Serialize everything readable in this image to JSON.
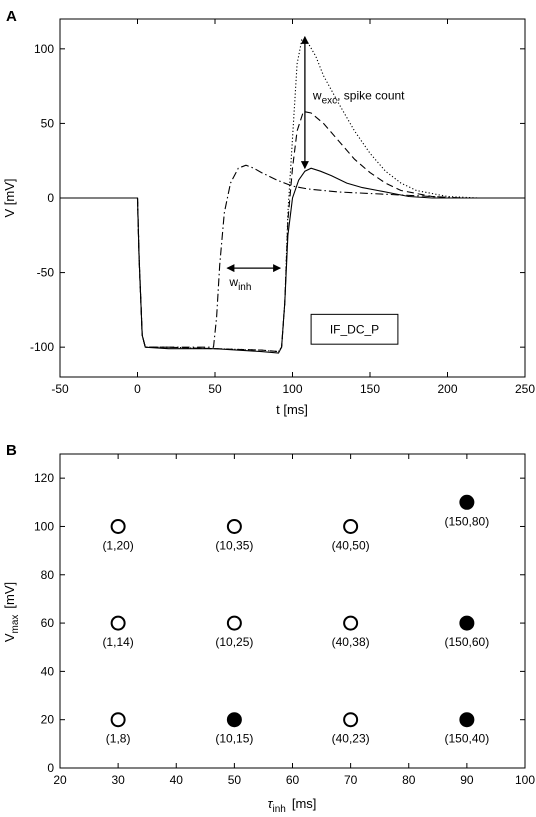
{
  "panels": {
    "a_label": "A",
    "b_label": "B"
  },
  "chart_data": [
    {
      "type": "line",
      "panel": "A",
      "xlabel": "t [ms]",
      "ylabel": "V [mV]",
      "xlim": [
        -50,
        250
      ],
      "ylim": [
        -120,
        120
      ],
      "xticks": [
        -50,
        0,
        50,
        100,
        150,
        200,
        250
      ],
      "yticks": [
        -100,
        -50,
        0,
        50,
        100
      ],
      "series": [
        {
          "style": "dotted",
          "x": [
            -50,
            0,
            1,
            3,
            5,
            20,
            50,
            80,
            91,
            93,
            95,
            97,
            100,
            103,
            106,
            110,
            115,
            120,
            130,
            140,
            150,
            160,
            170,
            180,
            190,
            200,
            220,
            250
          ],
          "y": [
            0,
            0,
            -40,
            -92,
            -100,
            -100,
            -101,
            -102,
            -103,
            -100,
            -70,
            -10,
            40,
            90,
            106,
            104,
            95,
            82,
            63,
            45,
            30,
            18,
            10,
            5,
            3,
            1,
            0,
            0
          ]
        },
        {
          "style": "dashed",
          "x": [
            -50,
            0,
            1,
            3,
            5,
            20,
            50,
            80,
            91,
            93,
            95,
            97,
            100,
            103,
            107,
            112,
            120,
            130,
            140,
            150,
            160,
            170,
            180,
            190,
            200,
            220,
            250
          ],
          "y": [
            0,
            0,
            -40,
            -92,
            -100,
            -100,
            -101,
            -102,
            -103,
            -100,
            -70,
            -15,
            20,
            45,
            58,
            57,
            50,
            38,
            26,
            17,
            10,
            5,
            3,
            1,
            0,
            0,
            0
          ]
        },
        {
          "style": "solid",
          "x": [
            -50,
            0,
            1,
            3,
            5,
            20,
            50,
            80,
            91,
            93,
            95,
            97,
            100,
            104,
            108,
            112,
            118,
            125,
            135,
            145,
            155,
            165,
            175,
            190,
            200,
            220,
            250
          ],
          "y": [
            0,
            0,
            -40,
            -92,
            -100,
            -101,
            -101,
            -103,
            -104,
            -100,
            -70,
            -25,
            0,
            12,
            18,
            20,
            18,
            15,
            10,
            7,
            5,
            3,
            1,
            0,
            0,
            0,
            0
          ]
        },
        {
          "style": "dashdot",
          "x": [
            -50,
            0,
            1,
            3,
            5,
            20,
            49,
            51,
            53,
            56,
            60,
            65,
            70,
            75,
            80,
            90,
            100,
            110,
            130,
            150,
            170,
            190,
            210,
            250
          ],
          "y": [
            0,
            0,
            -40,
            -92,
            -100,
            -100,
            -100,
            -80,
            -45,
            -10,
            10,
            20,
            22,
            20,
            17,
            12,
            8,
            6,
            4,
            3,
            2,
            1,
            0,
            0
          ]
        }
      ],
      "annotations": {
        "w_inh": {
          "main": "w",
          "sub": "inh",
          "x_from": 58,
          "x_to": 92,
          "y": -47
        },
        "w_exc": {
          "main": "w",
          "sub": "exc",
          "rest": ", spike count",
          "x": 108,
          "y_from": 20,
          "y_to": 108
        },
        "legend_box": "IF_DC_P"
      }
    },
    {
      "type": "scatter",
      "panel": "B",
      "xlabel_main": "τ",
      "xlabel_sub": "inh",
      "xlabel_rest": "[ms]",
      "ylabel_main": "V",
      "ylabel_sub": "max",
      "ylabel_rest": "[mV]",
      "xlim": [
        20,
        100
      ],
      "ylim": [
        0,
        130
      ],
      "xticks": [
        20,
        30,
        40,
        50,
        60,
        70,
        80,
        90,
        100
      ],
      "yticks": [
        0,
        20,
        40,
        60,
        80,
        100,
        120
      ],
      "points": [
        {
          "x": 30,
          "y": 100,
          "filled": false,
          "label": "(1,20)"
        },
        {
          "x": 50,
          "y": 100,
          "filled": false,
          "label": "(10,35)"
        },
        {
          "x": 70,
          "y": 100,
          "filled": false,
          "label": "(40,50)"
        },
        {
          "x": 90,
          "y": 110,
          "filled": true,
          "label": "(150,80)"
        },
        {
          "x": 30,
          "y": 60,
          "filled": false,
          "label": "(1,14)"
        },
        {
          "x": 50,
          "y": 60,
          "filled": false,
          "label": "(10,25)"
        },
        {
          "x": 70,
          "y": 60,
          "filled": false,
          "label": "(40,38)"
        },
        {
          "x": 90,
          "y": 60,
          "filled": true,
          "label": "(150,60)"
        },
        {
          "x": 30,
          "y": 20,
          "filled": false,
          "label": "(1,8)"
        },
        {
          "x": 50,
          "y": 20,
          "filled": true,
          "label": "(10,15)"
        },
        {
          "x": 70,
          "y": 20,
          "filled": false,
          "label": "(40,23)"
        },
        {
          "x": 90,
          "y": 20,
          "filled": true,
          "label": "(150,40)"
        }
      ]
    }
  ]
}
